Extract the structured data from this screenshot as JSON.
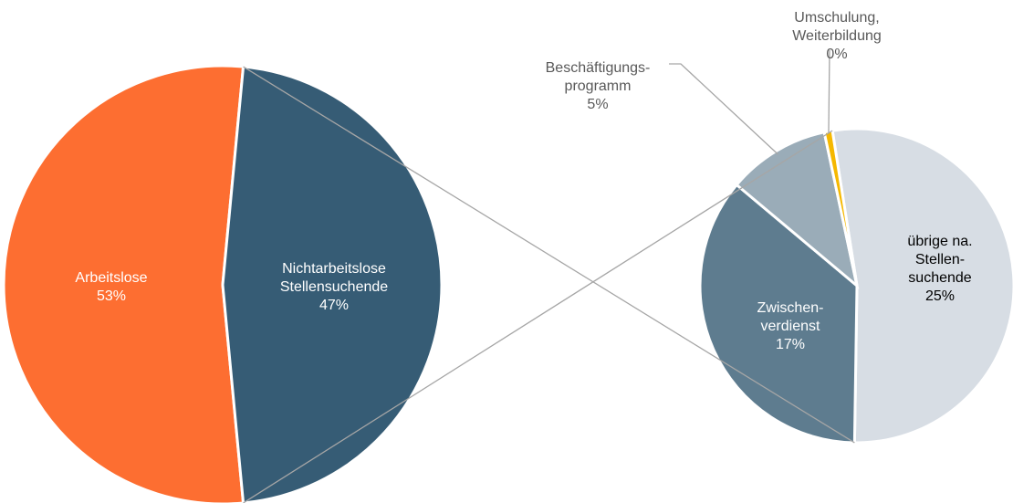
{
  "chart_data": [
    {
      "type": "pie",
      "categories": [
        "Arbeitslose",
        "Nichtarbeitslose\nStellensuchende"
      ],
      "values": [
        53,
        47
      ],
      "value_labels": [
        "53%",
        "47%"
      ],
      "colors": [
        "#fd6e31",
        "#365c75"
      ]
    },
    {
      "type": "pie",
      "categories": [
        "übrige na.\nStellen-\nsuchende",
        "Zwischen-\nverdienst",
        "Beschäftigungs-\nprogramm",
        "Umschulung,\nWeiterbildung"
      ],
      "values": [
        25,
        17,
        5,
        0.4
      ],
      "value_labels": [
        "25%",
        "17%",
        "5%",
        "0%"
      ],
      "colors": [
        "#d7dde4",
        "#5e7c8f",
        "#9aacb8",
        "#f5b800"
      ]
    }
  ]
}
